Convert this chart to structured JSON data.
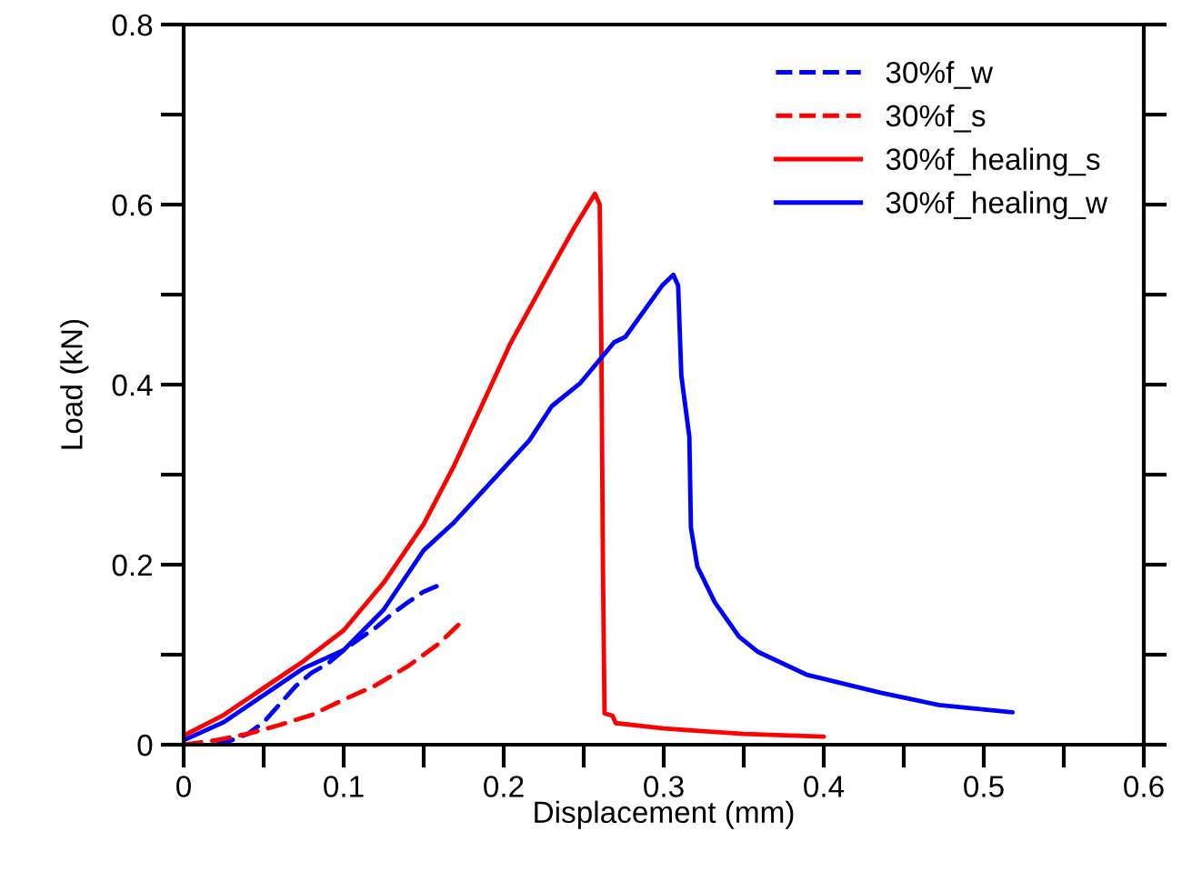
{
  "chart_data": {
    "type": "line",
    "xlabel": "Displacement (mm)",
    "ylabel": "Load (kN)",
    "xlim": [
      0,
      0.6
    ],
    "ylim": [
      0,
      0.8
    ],
    "xticks": [
      0,
      0.1,
      0.2,
      0.3,
      0.4,
      0.5,
      0.6
    ],
    "yticks": [
      0,
      0.2,
      0.4,
      0.6,
      0.8
    ],
    "grid": false,
    "legend": "top right",
    "marker": "none",
    "series": [
      {
        "name": "30%f_w",
        "color": "#0000ff",
        "line_style": "dashed",
        "x": [
          0.02,
          0.03,
          0.04,
          0.05,
          0.06,
          0.07,
          0.08,
          0.09,
          0.1,
          0.11,
          0.12,
          0.13,
          0.14,
          0.15,
          0.158
        ],
        "values": [
          0.0,
          0.005,
          0.012,
          0.025,
          0.045,
          0.065,
          0.08,
          0.09,
          0.105,
          0.118,
          0.13,
          0.145,
          0.158,
          0.17,
          0.176
        ]
      },
      {
        "name": "30%f_s",
        "color": "#ff0000",
        "line_style": "dashed",
        "x": [
          0,
          0.02,
          0.04,
          0.06,
          0.08,
          0.1,
          0.12,
          0.14,
          0.16,
          0.174
        ],
        "values": [
          0.0,
          0.005,
          0.012,
          0.022,
          0.033,
          0.05,
          0.066,
          0.087,
          0.113,
          0.137
        ]
      },
      {
        "name": "30%f_healing_s",
        "color": "#ff0000",
        "line_style": "solid",
        "x": [
          0,
          0.025,
          0.05,
          0.075,
          0.1,
          0.125,
          0.15,
          0.169,
          0.204,
          0.232,
          0.244,
          0.257,
          0.26,
          0.261,
          0.262,
          0.263,
          0.268,
          0.27,
          0.3,
          0.35,
          0.4
        ],
        "values": [
          0.01,
          0.033,
          0.063,
          0.093,
          0.127,
          0.18,
          0.245,
          0.31,
          0.445,
          0.536,
          0.574,
          0.612,
          0.6,
          0.45,
          0.2,
          0.035,
          0.032,
          0.024,
          0.018,
          0.012,
          0.009
        ]
      },
      {
        "name": "30%f_healing_w",
        "color": "#0000ff",
        "line_style": "solid",
        "x": [
          0,
          0.025,
          0.05,
          0.075,
          0.1,
          0.125,
          0.15,
          0.169,
          0.216,
          0.23,
          0.248,
          0.269,
          0.276,
          0.299,
          0.306,
          0.309,
          0.311,
          0.316,
          0.317,
          0.321,
          0.332,
          0.347,
          0.359,
          0.389,
          0.435,
          0.472,
          0.518
        ],
        "values": [
          0.005,
          0.025,
          0.055,
          0.085,
          0.105,
          0.15,
          0.216,
          0.247,
          0.338,
          0.376,
          0.402,
          0.447,
          0.453,
          0.51,
          0.522,
          0.51,
          0.41,
          0.342,
          0.241,
          0.198,
          0.158,
          0.12,
          0.103,
          0.078,
          0.058,
          0.044,
          0.036
        ]
      }
    ]
  }
}
